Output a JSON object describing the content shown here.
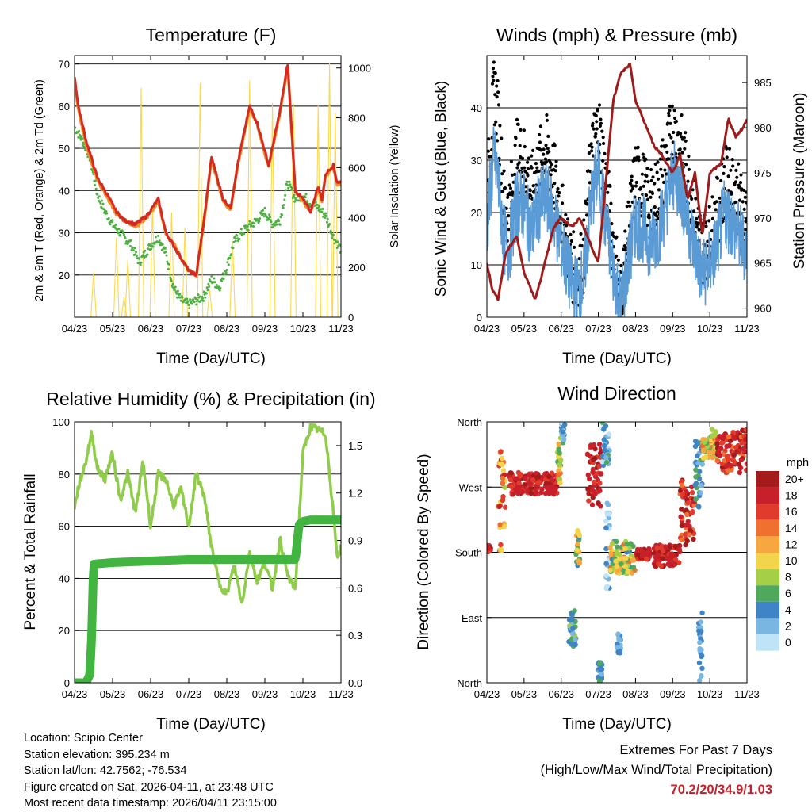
{
  "info": {
    "location": "Location: Scipio Center",
    "elevation": "Station elevation: 395.234 m",
    "latlon": "Station lat/lon: 42.7562; -76.534",
    "created": "Figure created on Sat, 2026-04-11, at 23:48 UTC",
    "recent": "Most recent data timestamp: 2026/04/11 23:15:00"
  },
  "extremes": {
    "heading": "Extremes For Past 7 Days",
    "subheading": "(High/Low/Max Wind/Total Precipitation)",
    "values": "70.2/20/34.9/1.03"
  },
  "colors": {
    "temp": "#d42a20",
    "temp9m": "#f0902a",
    "dewpoint": "#4bb040",
    "solar": "#ffd84a",
    "wind": "#5b9bd5",
    "gust": "#000000",
    "pressure": "#9e1b1b",
    "rh": "#8fcc4a",
    "precip": "#42b440"
  },
  "chart_data": [
    {
      "id": "temperature",
      "type": "line",
      "title": "Temperature (F)",
      "xlabel": "Time (Day/UTC)",
      "ylabel": "2m & 9m T (Red, Orange) & 2m Td (Green)",
      "y2label": "Solar Insolation (Yellow)",
      "xticks": [
        "04/23",
        "05/23",
        "06/23",
        "07/23",
        "08/23",
        "09/23",
        "10/23",
        "11/23"
      ],
      "xlim": [
        0,
        7
      ],
      "ylim": [
        10,
        72
      ],
      "yticks": [
        20,
        30,
        40,
        50,
        60,
        70
      ],
      "y2lim": [
        0,
        1050
      ],
      "y2ticks": [
        0,
        200,
        400,
        600,
        800,
        1000
      ],
      "grid": true,
      "series": [
        {
          "name": "2m T",
          "x": [
            0,
            0.1,
            0.3,
            0.6,
            0.8,
            1.1,
            1.3,
            1.6,
            1.9,
            2.2,
            2.4,
            2.6,
            2.8,
            3,
            3.2,
            3.4,
            3.6,
            3.9,
            4.1,
            4.3,
            4.6,
            4.8,
            5.1,
            5.4,
            5.6,
            5.8,
            6,
            6.2,
            6.4,
            6.5,
            6.6,
            6.8,
            6.9,
            7
          ],
          "y": [
            67,
            60,
            52,
            43,
            40,
            35,
            33,
            32,
            34,
            38,
            30,
            27,
            24,
            21,
            20,
            33,
            48,
            38,
            36,
            47,
            60,
            56,
            46,
            59,
            70,
            40,
            38,
            35,
            41,
            38,
            44,
            46,
            42,
            42
          ]
        },
        {
          "name": "9m T",
          "x": [
            0,
            0.1,
            0.3,
            0.6,
            0.8,
            1.1,
            1.3,
            1.6,
            1.9,
            2.2,
            2.4,
            2.6,
            2.8,
            3,
            3.2,
            3.4,
            3.6,
            3.9,
            4.1,
            4.3,
            4.6,
            4.8,
            5.1,
            5.4,
            5.6,
            5.8,
            6,
            6.2,
            6.4,
            6.5,
            6.6,
            6.8,
            6.9,
            7
          ],
          "y": [
            66,
            59,
            51,
            42.5,
            39.5,
            34.5,
            33,
            31.5,
            33.5,
            37.5,
            30,
            27.5,
            24,
            21,
            20,
            32.5,
            47.5,
            37.5,
            35.5,
            46.5,
            59.5,
            55.5,
            45.5,
            58.5,
            69.5,
            40,
            37.5,
            35,
            40.5,
            37.5,
            43.5,
            45.5,
            41.5,
            41.5
          ]
        },
        {
          "name": "2m Td",
          "x": [
            0,
            0.2,
            0.4,
            0.6,
            0.8,
            1,
            1.2,
            1.5,
            1.7,
            2,
            2.2,
            2.4,
            2.6,
            2.8,
            3,
            3.2,
            3.4,
            3.6,
            3.8,
            4,
            4.2,
            4.5,
            4.8,
            5,
            5.2,
            5.4,
            5.6,
            5.8,
            6,
            6.2,
            6.4,
            6.6,
            6.8,
            7
          ],
          "y": [
            55,
            52,
            48,
            39,
            35,
            32,
            30,
            27,
            23,
            27,
            29,
            25,
            17,
            14,
            13,
            14,
            15,
            19,
            17,
            22,
            28,
            31,
            33,
            35,
            32,
            33,
            42,
            38,
            39,
            37,
            36,
            34,
            29,
            26
          ]
        },
        {
          "name": "Solar",
          "axis": "y2",
          "peaks": [
            {
              "x": 0.5,
              "y": 180
            },
            {
              "x": 1.1,
              "y": 320
            },
            {
              "x": 1.3,
              "y": 80
            },
            {
              "x": 1.4,
              "y": 230
            },
            {
              "x": 1.75,
              "y": 920
            },
            {
              "x": 2.05,
              "y": 450
            },
            {
              "x": 2.55,
              "y": 420
            },
            {
              "x": 2.9,
              "y": 360
            },
            {
              "x": 3.3,
              "y": 940
            },
            {
              "x": 3.55,
              "y": 110
            },
            {
              "x": 4.15,
              "y": 300
            },
            {
              "x": 4.6,
              "y": 950
            },
            {
              "x": 5.2,
              "y": 860
            },
            {
              "x": 5.75,
              "y": 860
            },
            {
              "x": 6.4,
              "y": 850
            },
            {
              "x": 6.7,
              "y": 1020
            },
            {
              "x": 6.85,
              "y": 820
            }
          ]
        }
      ]
    },
    {
      "id": "winds",
      "type": "line",
      "title": "Winds (mph) & Pressure (mb)",
      "xlabel": "Time (Day/UTC)",
      "ylabel": "Sonic Wind & Gust (Blue, Black)",
      "y2label": "Station Pressure (Maroon)",
      "xticks": [
        "04/23",
        "05/23",
        "06/23",
        "07/23",
        "08/23",
        "09/23",
        "10/23",
        "11/23"
      ],
      "xlim": [
        0,
        7
      ],
      "ylim": [
        0,
        50
      ],
      "yticks": [
        0,
        10,
        20,
        30,
        40
      ],
      "y2lim": [
        959,
        988
      ],
      "y2ticks": [
        960,
        965,
        970,
        975,
        980,
        985
      ],
      "grid": true,
      "series": [
        {
          "name": "Wind",
          "x": [
            0,
            0.1,
            0.2,
            0.3,
            0.45,
            0.6,
            0.8,
            1,
            1.2,
            1.4,
            1.6,
            1.8,
            2,
            2.2,
            2.4,
            2.6,
            2.8,
            3,
            3.2,
            3.4,
            3.6,
            3.8,
            4,
            4.2,
            4.4,
            4.6,
            4.8,
            5,
            5.2,
            5.4,
            5.6,
            5.8,
            6,
            6.2,
            6.4,
            6.6,
            6.8,
            7
          ],
          "y": [
            17,
            25,
            31,
            26,
            15,
            13,
            22,
            21,
            16,
            21,
            23,
            19,
            14,
            8,
            5,
            7,
            22,
            28,
            18,
            9,
            2,
            10,
            18,
            17,
            14,
            16,
            21,
            27,
            25,
            19,
            13,
            8,
            10,
            14,
            20,
            18,
            15,
            13
          ]
        },
        {
          "name": "Gust",
          "x": [
            0,
            0.1,
            0.2,
            0.3,
            0.45,
            0.6,
            0.8,
            1,
            1.2,
            1.4,
            1.6,
            1.8,
            2,
            2.2,
            2.4,
            2.6,
            2.8,
            3,
            3.2,
            3.4,
            3.6,
            3.8,
            4,
            4.2,
            4.4,
            4.6,
            4.8,
            5,
            5.2,
            5.4,
            5.6,
            5.8,
            6,
            6.2,
            6.4,
            6.6,
            6.8,
            7
          ],
          "y": [
            22,
            33,
            44,
            38,
            22,
            20,
            31,
            30,
            24,
            29,
            32,
            27,
            20,
            12,
            8,
            11,
            30,
            37,
            26,
            14,
            4,
            16,
            27,
            25,
            21,
            24,
            30,
            36,
            33,
            27,
            19,
            13,
            15,
            20,
            26,
            25,
            22,
            19
          ]
        },
        {
          "name": "Pressure",
          "axis": "y2",
          "x": [
            0,
            0.15,
            0.3,
            0.5,
            0.8,
            1,
            1.3,
            1.5,
            1.8,
            2,
            2.3,
            2.5,
            2.7,
            3,
            3.2,
            3.4,
            3.6,
            3.85,
            4,
            4.3,
            4.5,
            4.7,
            5,
            5.2,
            5.4,
            5.6,
            5.8,
            6,
            6.3,
            6.5,
            6.7,
            6.9,
            7
          ],
          "y": [
            965,
            962,
            961,
            966,
            968,
            964,
            961,
            964,
            969,
            970,
            969,
            970,
            968,
            965,
            974,
            983,
            986,
            987,
            983,
            980,
            978,
            977,
            975,
            977,
            972,
            975,
            968,
            975,
            976,
            981,
            979,
            980,
            981
          ]
        }
      ]
    },
    {
      "id": "humidity",
      "type": "line",
      "title": "Relative Humidity (%) & Precipitation (in)",
      "xlabel": "Time (Day/UTC)",
      "ylabel": "Percent & Total Rainfall",
      "xticks": [
        "04/23",
        "05/23",
        "06/23",
        "07/23",
        "08/23",
        "09/23",
        "10/23",
        "11/23"
      ],
      "xlim": [
        0,
        7
      ],
      "ylim": [
        0,
        100
      ],
      "yticks": [
        0,
        20,
        40,
        60,
        80,
        100
      ],
      "y2lim": [
        0,
        1.65
      ],
      "y2ticks": [
        "0.0",
        "0.3",
        "0.6",
        "0.9",
        "1.2",
        "1.5"
      ],
      "grid": true,
      "series": [
        {
          "name": "RH",
          "x": [
            0,
            0.1,
            0.3,
            0.45,
            0.6,
            0.8,
            1,
            1.2,
            1.4,
            1.6,
            1.8,
            2,
            2.2,
            2.4,
            2.6,
            2.8,
            3,
            3.2,
            3.4,
            3.6,
            3.8,
            4,
            4.2,
            4.4,
            4.6,
            4.8,
            5,
            5.2,
            5.4,
            5.6,
            5.8,
            6,
            6.2,
            6.4,
            6.6,
            6.8,
            6.9,
            7
          ],
          "y": [
            67,
            75,
            85,
            96,
            82,
            78,
            88,
            70,
            80,
            65,
            85,
            60,
            80,
            78,
            68,
            74,
            60,
            80,
            72,
            52,
            38,
            34,
            45,
            30,
            50,
            39,
            46,
            36,
            55,
            41,
            36,
            88,
            98,
            97,
            95,
            65,
            48,
            52
          ]
        },
        {
          "name": "Precip",
          "axis": "y2",
          "x": [
            0,
            0.3,
            0.4,
            0.45,
            0.5,
            1,
            2,
            3,
            4,
            5,
            5.8,
            5.9,
            6,
            6.2,
            6.5,
            7
          ],
          "y": [
            0,
            0,
            0.05,
            0.3,
            0.75,
            0.76,
            0.77,
            0.78,
            0.78,
            0.78,
            0.78,
            1.0,
            1.02,
            1.03,
            1.03,
            1.03
          ]
        }
      ]
    },
    {
      "id": "winddir",
      "type": "scatter",
      "title": "Wind Direction",
      "xlabel": "Time (Day/UTC)",
      "ylabel": "Direction (Colored By Speed)",
      "xticks": [
        "04/23",
        "05/23",
        "06/23",
        "07/23",
        "08/23",
        "09/23",
        "10/23",
        "11/23"
      ],
      "xlim": [
        0,
        7
      ],
      "ylim": [
        0,
        360
      ],
      "ytick_labels": [
        "North",
        "East",
        "South",
        "West",
        "North"
      ],
      "yticks": [
        0,
        90,
        180,
        270,
        360
      ],
      "grid": true,
      "colorbar_title": "mph",
      "colorbar_labels": [
        "20+",
        "18",
        "16",
        "14",
        "12",
        "10",
        "8",
        "6",
        "4",
        "2",
        "0"
      ],
      "colorbar_colors": [
        "#a51b1b",
        "#c8202a",
        "#e03b2c",
        "#f07030",
        "#f8a640",
        "#f4d44a",
        "#a6cf48",
        "#4fa85c",
        "#3f84c4",
        "#7ab6e2",
        "#bfe3f7"
      ],
      "clusters": [
        {
          "x": [
            0,
            0.1
          ],
          "dir": [
            180,
            190
          ],
          "speed": [
            16,
            20
          ]
        },
        {
          "x": [
            0.3,
            0.5
          ],
          "dir": [
            180,
            320
          ],
          "speed": [
            8,
            18
          ]
        },
        {
          "x": [
            0.6,
            1.9
          ],
          "dir": [
            260,
            290
          ],
          "speed": [
            16,
            20
          ]
        },
        {
          "x": [
            1.9,
            2.0
          ],
          "dir": [
            270,
            340
          ],
          "speed": [
            6,
            16
          ]
        },
        {
          "x": [
            2.0,
            2.1
          ],
          "dir": [
            330,
            360
          ],
          "speed": [
            0,
            6
          ]
        },
        {
          "x": [
            2.2,
            2.4
          ],
          "dir": [
            50,
            100
          ],
          "speed": [
            2,
            8
          ]
        },
        {
          "x": [
            2.4,
            2.5
          ],
          "dir": [
            160,
            210
          ],
          "speed": [
            4,
            12
          ]
        },
        {
          "x": [
            2.7,
            3.1
          ],
          "dir": [
            240,
            330
          ],
          "speed": [
            16,
            20
          ]
        },
        {
          "x": [
            3.1,
            3.3
          ],
          "dir": [
            300,
            360
          ],
          "speed": [
            0,
            6
          ]
        },
        {
          "x": [
            3.2,
            3.3
          ],
          "dir": [
            130,
            250
          ],
          "speed": [
            0,
            4
          ]
        },
        {
          "x": [
            3.0,
            3.1
          ],
          "dir": [
            0,
            30
          ],
          "speed": [
            2,
            6
          ]
        },
        {
          "x": [
            3.5,
            3.6
          ],
          "dir": [
            40,
            70
          ],
          "speed": [
            2,
            4
          ]
        },
        {
          "x": [
            3.3,
            4.0
          ],
          "dir": [
            150,
            195
          ],
          "speed": [
            4,
            14
          ]
        },
        {
          "x": [
            4.0,
            4.4
          ],
          "dir": [
            170,
            185
          ],
          "speed": [
            16,
            20
          ]
        },
        {
          "x": [
            4.5,
            5.2
          ],
          "dir": [
            160,
            190
          ],
          "speed": [
            16,
            20
          ]
        },
        {
          "x": [
            5.2,
            5.6
          ],
          "dir": [
            190,
            280
          ],
          "speed": [
            14,
            20
          ]
        },
        {
          "x": [
            5.6,
            5.8
          ],
          "dir": [
            240,
            340
          ],
          "speed": [
            2,
            6
          ]
        },
        {
          "x": [
            5.7,
            5.8
          ],
          "dir": [
            0,
            100
          ],
          "speed": [
            2,
            4
          ]
        },
        {
          "x": [
            5.8,
            6.2
          ],
          "dir": [
            310,
            350
          ],
          "speed": [
            6,
            14
          ]
        },
        {
          "x": [
            6.2,
            7.0
          ],
          "dir": [
            290,
            350
          ],
          "speed": [
            14,
            20
          ]
        }
      ]
    }
  ]
}
